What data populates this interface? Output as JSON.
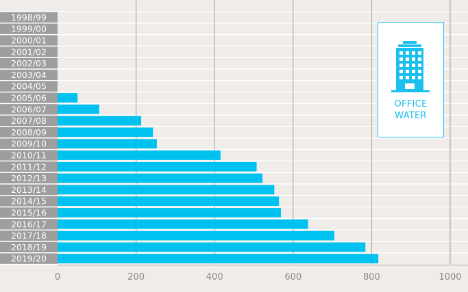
{
  "chart_data": {
    "type": "bar",
    "orientation": "horizontal",
    "categories": [
      "1998/99",
      "1999/00",
      "2000/01",
      "2001/02",
      "2002/03",
      "2003/04",
      "2004/05",
      "2005/06",
      "2006/07",
      "2007/08",
      "2008/09",
      "2009/10",
      "2010/11",
      "2011/12",
      "2012/13",
      "2013/14",
      "2014/15",
      "2015/16",
      "2016/17",
      "2017/18",
      "2018/19",
      "2019/20"
    ],
    "values": [
      0,
      0,
      0,
      0,
      0,
      0,
      0,
      51,
      106,
      213,
      243,
      253,
      415,
      507,
      522,
      552,
      564,
      569,
      638,
      705,
      784,
      817
    ],
    "xlim": [
      0,
      1000
    ],
    "xticks": [
      0,
      200,
      400,
      600,
      800,
      1000
    ],
    "grid": true,
    "bar_color": "#00c2f0",
    "title": "",
    "xlabel": "",
    "ylabel": ""
  },
  "card": {
    "line1": "OFFICE",
    "line2": "WATER",
    "icon": "office-building-icon",
    "color": "#1cc0ef"
  }
}
